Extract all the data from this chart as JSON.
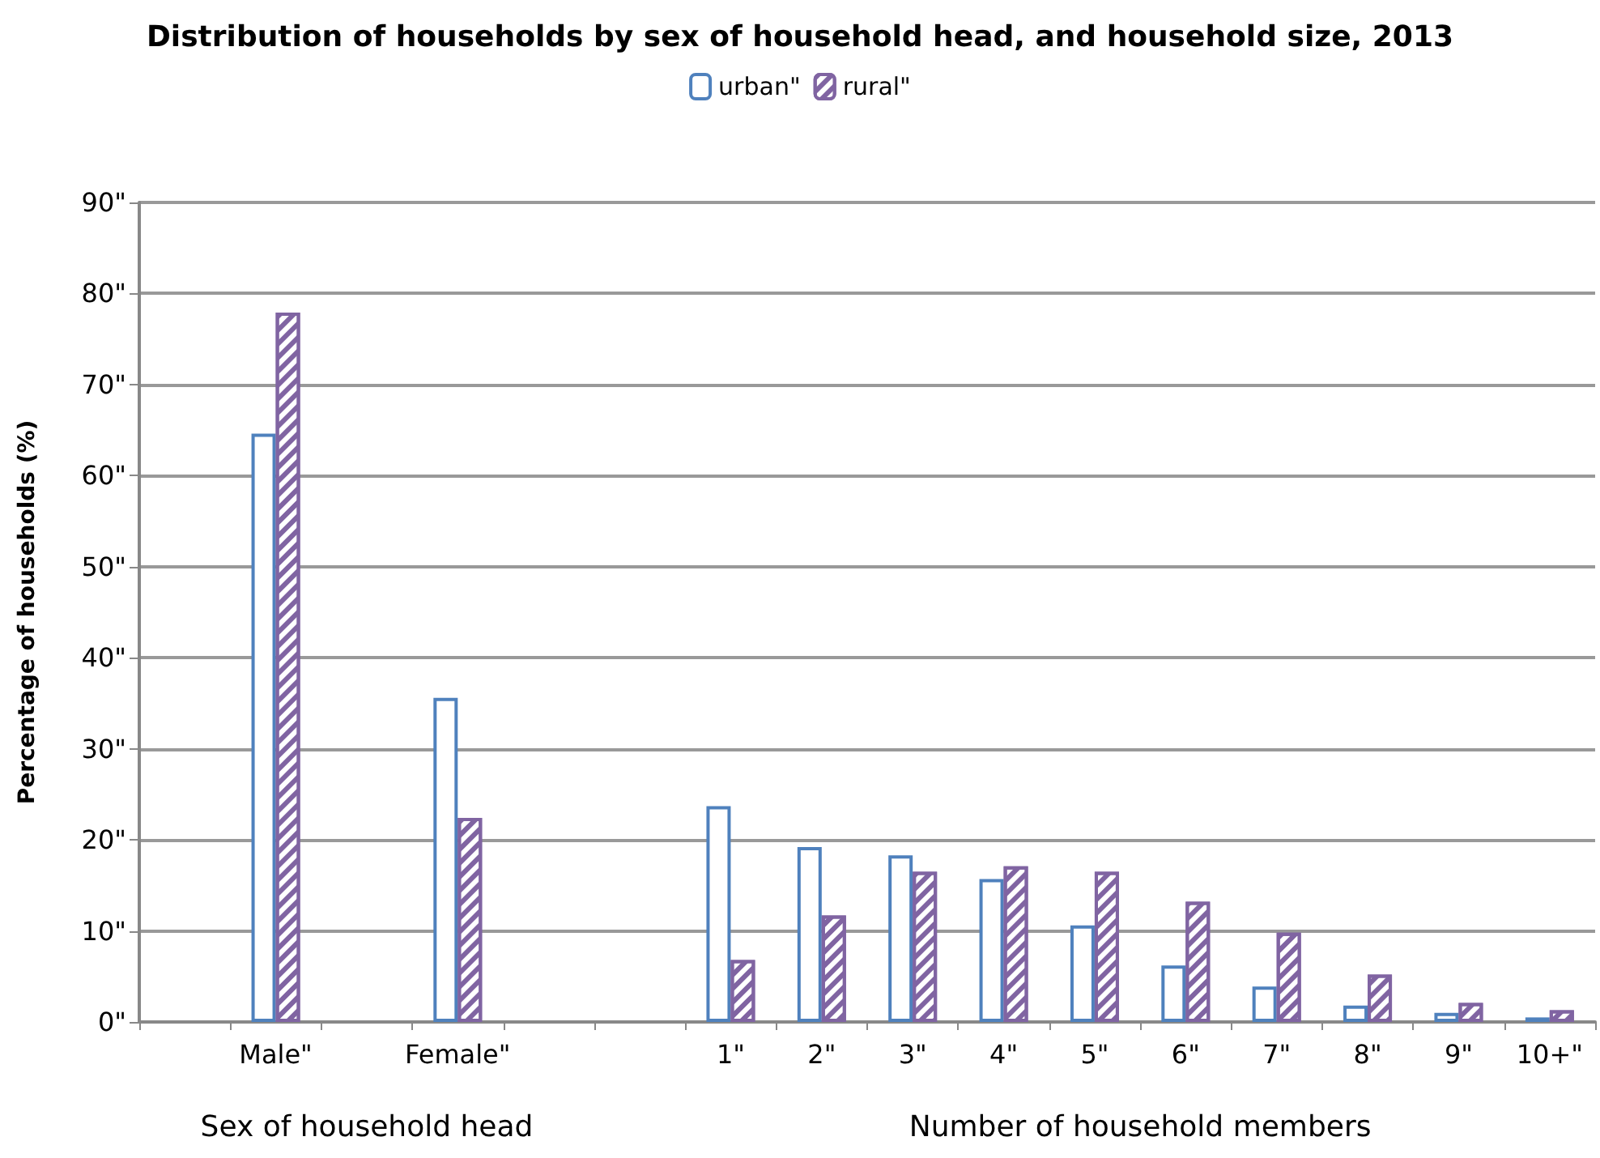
{
  "chart_data": {
    "type": "bar",
    "title": "Distribution of households by sex of household head, and household size, 2013",
    "ylabel": "Percentage of households (%)",
    "categories": [
      null,
      "Male\"",
      null,
      "Female\"",
      null,
      null,
      "1\"",
      "2\"",
      "3\"",
      "4\"",
      "5\"",
      "6\"",
      "7\"",
      "8\"",
      "9\"",
      "10+\""
    ],
    "series": [
      {
        "name": "urban\"",
        "color": "#4f81bd",
        "values": [
          null,
          64.6,
          null,
          35.6,
          null,
          null,
          23.7,
          19.2,
          18.3,
          15.7,
          10.6,
          6.2,
          3.9,
          1.8,
          1.0,
          0.5
        ]
      },
      {
        "name": "rural\"",
        "color": "#8064a2",
        "values": [
          null,
          77.9,
          null,
          22.4,
          null,
          null,
          6.8,
          11.7,
          16.5,
          17.1,
          16.5,
          13.2,
          9.8,
          5.2,
          2.1,
          1.3
        ]
      }
    ],
    "ylim": [
      0,
      90
    ],
    "yticks": [
      {
        "value": 0,
        "label": "0\""
      },
      {
        "value": 10,
        "label": "10\""
      },
      {
        "value": 20,
        "label": "20\""
      },
      {
        "value": 30,
        "label": "30\""
      },
      {
        "value": 40,
        "label": "40\""
      },
      {
        "value": 50,
        "label": "50\""
      },
      {
        "value": 60,
        "label": "60\""
      },
      {
        "value": 70,
        "label": "70\""
      },
      {
        "value": 80,
        "label": "80\""
      },
      {
        "value": 90,
        "label": "90\""
      }
    ],
    "grid": "y",
    "legend": "top",
    "annotations": [
      "Sex of household head",
      "Number of household members"
    ]
  }
}
